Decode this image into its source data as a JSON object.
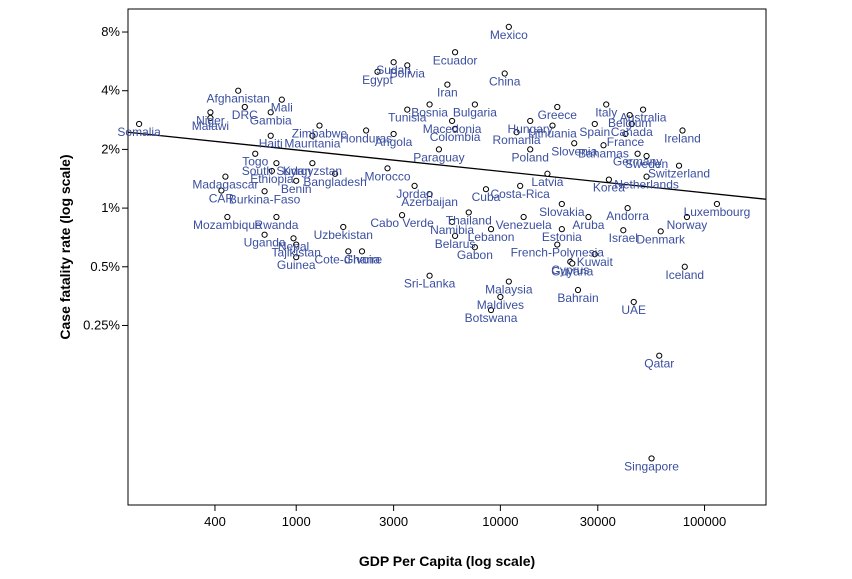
{
  "chart_data": {
    "type": "scatter",
    "xlabel": "GDP Per Capita (log scale)",
    "ylabel": "Case fatality rate (log scale)",
    "x_scale": "log",
    "y_scale": "log",
    "xlim": [
      150,
      200000
    ],
    "ylim": [
      0.03,
      10.5
    ],
    "x_ticks": [
      {
        "value": 400,
        "label": "400"
      },
      {
        "value": 1000,
        "label": "1000"
      },
      {
        "value": 3000,
        "label": "3000"
      },
      {
        "value": 10000,
        "label": "10000"
      },
      {
        "value": 30000,
        "label": "30000"
      },
      {
        "value": 100000,
        "label": "100000"
      }
    ],
    "y_ticks": [
      {
        "value": 8,
        "label": "8%"
      },
      {
        "value": 4,
        "label": "4%"
      },
      {
        "value": 2,
        "label": "2%"
      },
      {
        "value": 1,
        "label": "1%"
      },
      {
        "value": 0.5,
        "label": "0.5%"
      },
      {
        "value": 0.25,
        "label": "0.25%"
      }
    ],
    "trend_line": {
      "x": [
        150,
        200000
      ],
      "y": [
        2.45,
        1.11
      ]
    },
    "grid": false,
    "point_color": "#000000",
    "label_color": "#3b4fa0",
    "line_color": "#000000",
    "points": [
      {
        "label": "Mexico",
        "x": 11000,
        "y": 8.5
      },
      {
        "label": "Ecuador",
        "x": 6000,
        "y": 6.3
      },
      {
        "label": "Sudan",
        "x": 3000,
        "y": 5.6
      },
      {
        "label": "Bolivia",
        "x": 3500,
        "y": 5.4
      },
      {
        "label": "Egypt",
        "x": 2500,
        "y": 5.0
      },
      {
        "label": "China",
        "x": 10500,
        "y": 4.9
      },
      {
        "label": "Iran",
        "x": 5500,
        "y": 4.3
      },
      {
        "label": "Afghanistan",
        "x": 520,
        "y": 4.0
      },
      {
        "label": "Mali",
        "x": 850,
        "y": 3.6
      },
      {
        "label": "DRC",
        "x": 560,
        "y": 3.3
      },
      {
        "label": "Niger",
        "x": 380,
        "y": 3.1
      },
      {
        "label": "Gambia",
        "x": 750,
        "y": 3.1
      },
      {
        "label": "Malawi",
        "x": 380,
        "y": 2.9
      },
      {
        "label": "Somalia",
        "x": 170,
        "y": 2.7
      },
      {
        "label": "Bosnia",
        "x": 4500,
        "y": 3.4
      },
      {
        "label": "Tunisia",
        "x": 3500,
        "y": 3.2
      },
      {
        "label": "Bulgaria",
        "x": 7500,
        "y": 3.4
      },
      {
        "label": "Greece",
        "x": 19000,
        "y": 3.3
      },
      {
        "label": "Italy",
        "x": 33000,
        "y": 3.4
      },
      {
        "label": "Australia",
        "x": 50000,
        "y": 3.2
      },
      {
        "label": "Belgium",
        "x": 43000,
        "y": 3.0
      },
      {
        "label": "Hungary",
        "x": 14000,
        "y": 2.8
      },
      {
        "label": "Spain",
        "x": 29000,
        "y": 2.7
      },
      {
        "label": "Canada",
        "x": 44000,
        "y": 2.7
      },
      {
        "label": "Lithuania",
        "x": 18000,
        "y": 2.65
      },
      {
        "label": "Macedonia",
        "x": 5800,
        "y": 2.8
      },
      {
        "label": "Zimbabwe",
        "x": 1300,
        "y": 2.65
      },
      {
        "label": "Honduras",
        "x": 2200,
        "y": 2.5
      },
      {
        "label": "Colombia",
        "x": 6000,
        "y": 2.55
      },
      {
        "label": "Romania",
        "x": 12000,
        "y": 2.45
      },
      {
        "label": "France",
        "x": 41000,
        "y": 2.4
      },
      {
        "label": "Ireland",
        "x": 78000,
        "y": 2.5
      },
      {
        "label": "Haiti",
        "x": 750,
        "y": 2.35
      },
      {
        "label": "Mauritania",
        "x": 1200,
        "y": 2.35
      },
      {
        "label": "Angola",
        "x": 3000,
        "y": 2.4
      },
      {
        "label": "Bahamas",
        "x": 32000,
        "y": 2.1
      },
      {
        "label": "Slovenia",
        "x": 23000,
        "y": 2.15
      },
      {
        "label": "Poland",
        "x": 14000,
        "y": 2.0
      },
      {
        "label": "Paraguay",
        "x": 5000,
        "y": 2.0
      },
      {
        "label": "Germany",
        "x": 47000,
        "y": 1.9
      },
      {
        "label": "Sweden",
        "x": 52000,
        "y": 1.85
      },
      {
        "label": "Togo",
        "x": 630,
        "y": 1.9
      },
      {
        "label": "South Sudan",
        "x": 800,
        "y": 1.7
      },
      {
        "label": "Kyrgyzstan",
        "x": 1200,
        "y": 1.7
      },
      {
        "label": "Switzerland",
        "x": 75000,
        "y": 1.65
      },
      {
        "label": "Ethiopia",
        "x": 760,
        "y": 1.55
      },
      {
        "label": "Morocco",
        "x": 2800,
        "y": 1.6
      },
      {
        "label": "Latvia",
        "x": 17000,
        "y": 1.5
      },
      {
        "label": "Bangladesh",
        "x": 1550,
        "y": 1.5
      },
      {
        "label": "Madagascar",
        "x": 450,
        "y": 1.45
      },
      {
        "label": "Korea",
        "x": 34000,
        "y": 1.4
      },
      {
        "label": "Netherlands",
        "x": 52000,
        "y": 1.45
      },
      {
        "label": "Benin",
        "x": 1000,
        "y": 1.38
      },
      {
        "label": "CAR",
        "x": 430,
        "y": 1.23
      },
      {
        "label": "Burkina-Faso",
        "x": 700,
        "y": 1.22
      },
      {
        "label": "Cuba",
        "x": 8500,
        "y": 1.25
      },
      {
        "label": "Costa-Rica",
        "x": 12500,
        "y": 1.3
      },
      {
        "label": "Jordan",
        "x": 3800,
        "y": 1.3
      },
      {
        "label": "Azerbaijan",
        "x": 4500,
        "y": 1.18
      },
      {
        "label": "Slovakia",
        "x": 20000,
        "y": 1.05
      },
      {
        "label": "Andorra",
        "x": 42000,
        "y": 1.0
      },
      {
        "label": "Luxembourg",
        "x": 115000,
        "y": 1.05
      },
      {
        "label": "Mozambique",
        "x": 460,
        "y": 0.9
      },
      {
        "label": "Rwanda",
        "x": 800,
        "y": 0.9
      },
      {
        "label": "Cabo Verde",
        "x": 3300,
        "y": 0.92
      },
      {
        "label": "Thailand",
        "x": 7000,
        "y": 0.95
      },
      {
        "label": "Venezuela",
        "x": 13000,
        "y": 0.9
      },
      {
        "label": "Aruba",
        "x": 27000,
        "y": 0.9
      },
      {
        "label": "Norway",
        "x": 82000,
        "y": 0.9
      },
      {
        "label": "Namibia",
        "x": 5800,
        "y": 0.85
      },
      {
        "label": "Uzbekistan",
        "x": 1700,
        "y": 0.8
      },
      {
        "label": "Lebanon",
        "x": 9000,
        "y": 0.78
      },
      {
        "label": "Estonia",
        "x": 20000,
        "y": 0.78
      },
      {
        "label": "Israel",
        "x": 40000,
        "y": 0.77
      },
      {
        "label": "Denmark",
        "x": 61000,
        "y": 0.76
      },
      {
        "label": "Uganda",
        "x": 700,
        "y": 0.73
      },
      {
        "label": "Belarus",
        "x": 6000,
        "y": 0.72
      },
      {
        "label": "Nepal",
        "x": 970,
        "y": 0.7
      },
      {
        "label": "Tajikistan",
        "x": 1000,
        "y": 0.65
      },
      {
        "label": "French-Polynesia",
        "x": 19000,
        "y": 0.65
      },
      {
        "label": "Gabon",
        "x": 7500,
        "y": 0.63
      },
      {
        "label": "Cote-d'Ivoire",
        "x": 1800,
        "y": 0.6
      },
      {
        "label": "Ghana",
        "x": 2100,
        "y": 0.6
      },
      {
        "label": "Kuwait",
        "x": 29000,
        "y": 0.58
      },
      {
        "label": "Guinea",
        "x": 1000,
        "y": 0.56
      },
      {
        "label": "Cyprus",
        "x": 22000,
        "y": 0.53
      },
      {
        "label": "Guyana",
        "x": 22500,
        "y": 0.52
      },
      {
        "label": "Iceland",
        "x": 80000,
        "y": 0.5
      },
      {
        "label": "Sri-Lanka",
        "x": 4500,
        "y": 0.45
      },
      {
        "label": "Malaysia",
        "x": 11000,
        "y": 0.42
      },
      {
        "label": "Bahrain",
        "x": 24000,
        "y": 0.38
      },
      {
        "label": "Maldives",
        "x": 10000,
        "y": 0.35
      },
      {
        "label": "UAE",
        "x": 45000,
        "y": 0.33
      },
      {
        "label": "Botswana",
        "x": 9000,
        "y": 0.3
      },
      {
        "label": "Qatar",
        "x": 60000,
        "y": 0.175
      },
      {
        "label": "Singapore",
        "x": 55000,
        "y": 0.052
      }
    ]
  }
}
